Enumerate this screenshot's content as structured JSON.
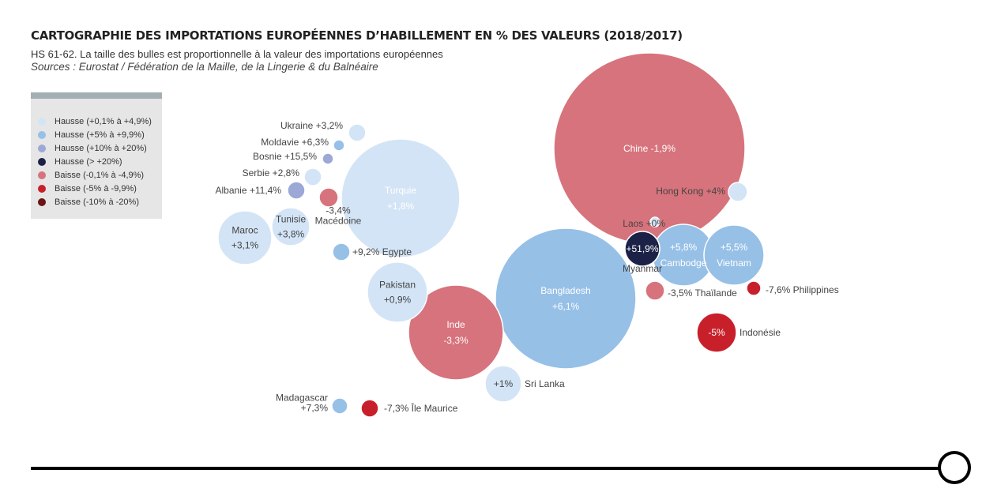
{
  "title": "CARTOGRAPHIE DES IMPORTATIONS EUROPÉENNES D’HABILLEMENT EN % DES VALEURS (2018/2017)",
  "subtitle": "HS 61-62. La taille des bulles est proportionnelle à la valeur des importations européennes",
  "sources": "Sources : Eurostat / Fédération de la Maille, de la Lingerie & du Balnéaire",
  "chart_data": {
    "type": "bubble",
    "categories": [
      {
        "key": "h1",
        "label": "Hausse (+0,1% à +4,9%)",
        "color": "#d3e4f6"
      },
      {
        "key": "h2",
        "label": "Hausse (+5% à +9,9%)",
        "color": "#97c0e7"
      },
      {
        "key": "h3",
        "label": "Hausse (+10% à +20%)",
        "color": "#9ca8d6"
      },
      {
        "key": "h4",
        "label": "Hausse (> +20%)",
        "color": "#1c2247"
      },
      {
        "key": "b1",
        "label": "Baisse (-0,1% à -4,9%)",
        "color": "#d7737c"
      },
      {
        "key": "b2",
        "label": "Baisse (-5% à -9,9%)",
        "color": "#c8202b"
      },
      {
        "key": "b3",
        "label": "Baisse (-10% à -20%)",
        "color": "#6b1515"
      }
    ],
    "bubbles": [
      {
        "country": "Chine",
        "text": "Chine -1,9%",
        "change": -1.9,
        "category": "b1"
      },
      {
        "country": "Bangladesh",
        "text": "Bangladesh\n+6,1%",
        "change": 6.1,
        "category": "h2"
      },
      {
        "country": "Turquie",
        "text": "Turquie\n+1,8%",
        "change": 1.8,
        "category": "h1"
      },
      {
        "country": "Inde",
        "text": "Inde\n-3,3%",
        "change": -3.3,
        "category": "b1"
      },
      {
        "country": "Cambodge",
        "text": "+5,8%\nCambodge",
        "change": 5.8,
        "category": "h2"
      },
      {
        "country": "Vietnam",
        "text": "+5,5%\nVietnam",
        "change": 5.5,
        "category": "h2"
      },
      {
        "country": "Pakistan",
        "text": "Pakistan\n+0,9%",
        "change": 0.9,
        "category": "h1"
      },
      {
        "country": "Maroc",
        "text": "Maroc\n+3,1%",
        "change": 3.1,
        "category": "h1"
      },
      {
        "country": "Tunisie",
        "text": "Tunisie\n+3,8%",
        "change": 3.8,
        "category": "h1"
      },
      {
        "country": "Sri Lanka",
        "text": "+1%",
        "sideText": "Sri Lanka",
        "change": 1.0,
        "category": "h1"
      },
      {
        "country": "Indonésie",
        "text": "-5%",
        "sideText": "Indonésie",
        "change": -5.0,
        "category": "b2"
      },
      {
        "country": "Myanmar",
        "text": "+51,9%",
        "sideText": "Myanmar",
        "change": 51.9,
        "category": "h4"
      },
      {
        "country": "Hong Kong",
        "text": "Hong Kong +4%",
        "change": 4.0,
        "category": "h1"
      },
      {
        "country": "Laos",
        "text": "Laos +0%",
        "change": 0.0,
        "category": "h1"
      },
      {
        "country": "Thaïlande",
        "text": "-3,5% Thaïlande",
        "change": -3.5,
        "category": "b1"
      },
      {
        "country": "Philippines",
        "text": "-7,6% Philippines",
        "change": -7.6,
        "category": "b2"
      },
      {
        "country": "Ukraine",
        "text": "Ukraine +3,2%",
        "change": 3.2,
        "category": "h1"
      },
      {
        "country": "Moldavie",
        "text": "Moldavie +6,3%",
        "change": 6.3,
        "category": "h2"
      },
      {
        "country": "Bosnie",
        "text": "Bosnie +15,5%",
        "change": 15.5,
        "category": "h3"
      },
      {
        "country": "Serbie",
        "text": "Serbie +2,8%",
        "change": 2.8,
        "category": "h1"
      },
      {
        "country": "Albanie",
        "text": "Albanie +11,4%",
        "change": 11.4,
        "category": "h3"
      },
      {
        "country": "Macédoine",
        "text": "-3,4%\nMacédoine",
        "change": -3.4,
        "category": "b1"
      },
      {
        "country": "Egypte",
        "text": "+9,2% Egypte",
        "change": 9.2,
        "category": "h2"
      },
      {
        "country": "Madagascar",
        "text": "Madagascar\n+7,3%",
        "change": 7.3,
        "category": "h2"
      },
      {
        "country": "Île Maurice",
        "text": "-7,3% Île Maurice",
        "change": -7.3,
        "category": "b2"
      }
    ]
  }
}
